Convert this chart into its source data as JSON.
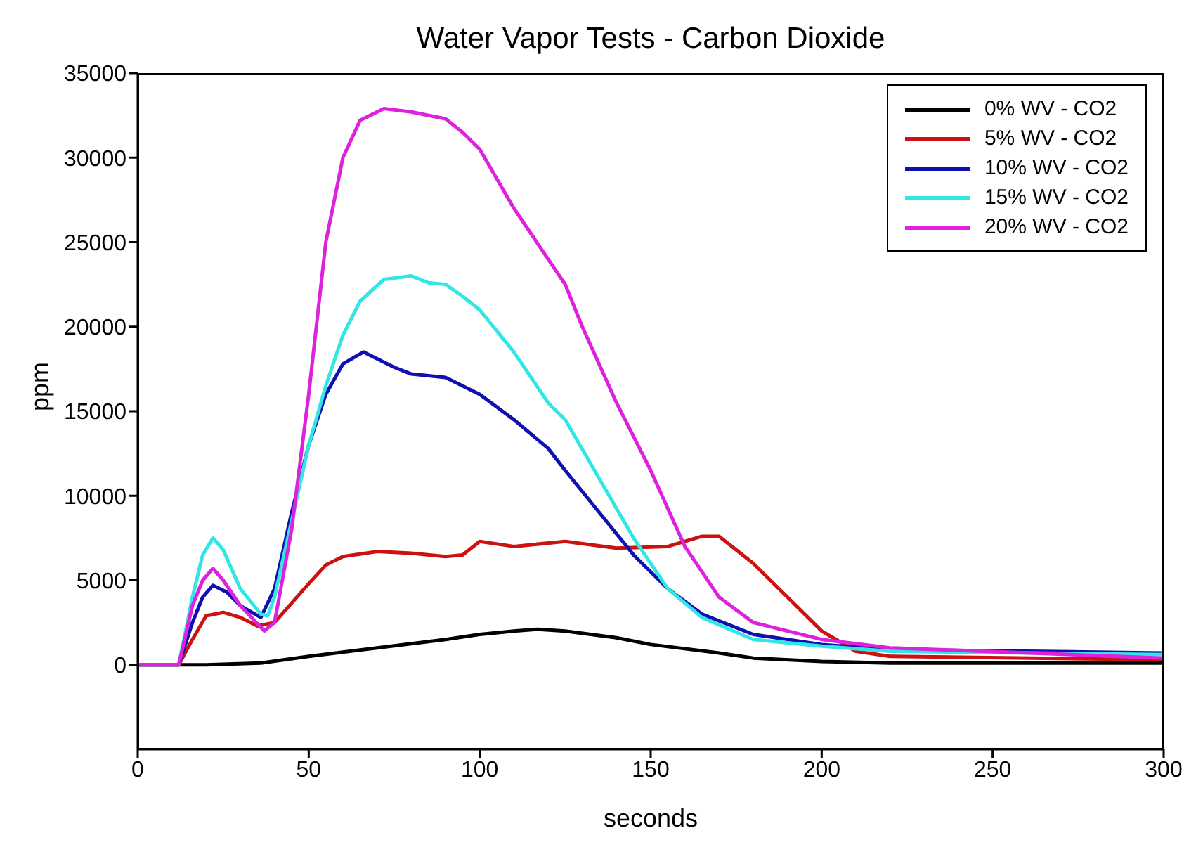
{
  "chart_data": {
    "type": "line",
    "title": "Water Vapor Tests - Carbon Dioxide",
    "xlabel": "seconds",
    "ylabel": "ppm",
    "xlim": [
      0,
      300
    ],
    "xticks": [
      0,
      50,
      100,
      150,
      200,
      250,
      300
    ],
    "ylim": [
      -5000,
      35000
    ],
    "yticks": [
      0,
      5000,
      10000,
      15000,
      20000,
      25000,
      30000,
      35000
    ],
    "grid": false,
    "legend": "top right",
    "marker": "none",
    "line_style": "solid",
    "series": [
      {
        "name": "0% WV - CO2",
        "color": "#000000",
        "x": [
          0,
          20,
          36,
          50,
          70,
          90,
          100,
          110,
          117,
          125,
          140,
          150,
          170,
          180,
          200,
          220,
          300
        ],
        "values": [
          0,
          0,
          100,
          500,
          1000,
          1500,
          1800,
          2000,
          2100,
          2000,
          1600,
          1200,
          700,
          400,
          200,
          100,
          100
        ]
      },
      {
        "name": "5% WV - CO2",
        "color": "#cc1111",
        "x": [
          0,
          12,
          16,
          20,
          25,
          30,
          35,
          40,
          50,
          55,
          60,
          70,
          80,
          90,
          95,
          100,
          110,
          125,
          140,
          155,
          165,
          170,
          180,
          190,
          200,
          210,
          220,
          300
        ],
        "values": [
          0,
          0,
          1500,
          2900,
          3100,
          2800,
          2300,
          2500,
          4800,
          5900,
          6400,
          6700,
          6600,
          6400,
          6500,
          7300,
          7000,
          7300,
          6900,
          7000,
          7600,
          7600,
          6000,
          4000,
          2000,
          800,
          500,
          300
        ]
      },
      {
        "name": "10% WV - CO2",
        "color": "#1010b0",
        "x": [
          0,
          12,
          16,
          19,
          22,
          26,
          30,
          36,
          40,
          45,
          50,
          55,
          60,
          66,
          75,
          80,
          90,
          100,
          110,
          120,
          125,
          135,
          145,
          155,
          165,
          180,
          200,
          220,
          300
        ],
        "values": [
          0,
          0,
          2500,
          4000,
          4700,
          4300,
          3500,
          2800,
          4500,
          9000,
          13000,
          16000,
          17800,
          18500,
          17600,
          17200,
          17000,
          16000,
          14500,
          12800,
          11500,
          9000,
          6500,
          4500,
          3000,
          1800,
          1200,
          900,
          700
        ]
      },
      {
        "name": "15% WV - CO2",
        "color": "#33e6e6",
        "x": [
          0,
          12,
          16,
          19,
          22,
          25,
          30,
          36,
          38,
          40,
          45,
          50,
          55,
          60,
          65,
          72,
          80,
          85,
          90,
          95,
          100,
          110,
          120,
          125,
          135,
          145,
          155,
          165,
          180,
          200,
          220,
          300
        ],
        "values": [
          0,
          0,
          4000,
          6500,
          7500,
          6800,
          4500,
          3000,
          2900,
          4000,
          8500,
          13000,
          16500,
          19500,
          21500,
          22800,
          23000,
          22600,
          22500,
          21800,
          21000,
          18500,
          15500,
          14500,
          11000,
          7500,
          4500,
          2800,
          1500,
          1100,
          800,
          600
        ]
      },
      {
        "name": "20% WV - CO2",
        "color": "#dd22dd",
        "x": [
          0,
          12,
          16,
          19,
          22,
          25,
          30,
          37,
          40,
          45,
          50,
          55,
          60,
          65,
          72,
          80,
          90,
          95,
          100,
          110,
          120,
          125,
          130,
          140,
          150,
          160,
          170,
          180,
          200,
          220,
          300
        ],
        "values": [
          0,
          0,
          3500,
          5000,
          5700,
          5000,
          3500,
          2000,
          2500,
          8000,
          16000,
          25000,
          30000,
          32200,
          32900,
          32700,
          32300,
          31500,
          30500,
          27000,
          24000,
          22500,
          20000,
          15500,
          11500,
          7000,
          4000,
          2500,
          1500,
          1000,
          400
        ]
      }
    ]
  }
}
